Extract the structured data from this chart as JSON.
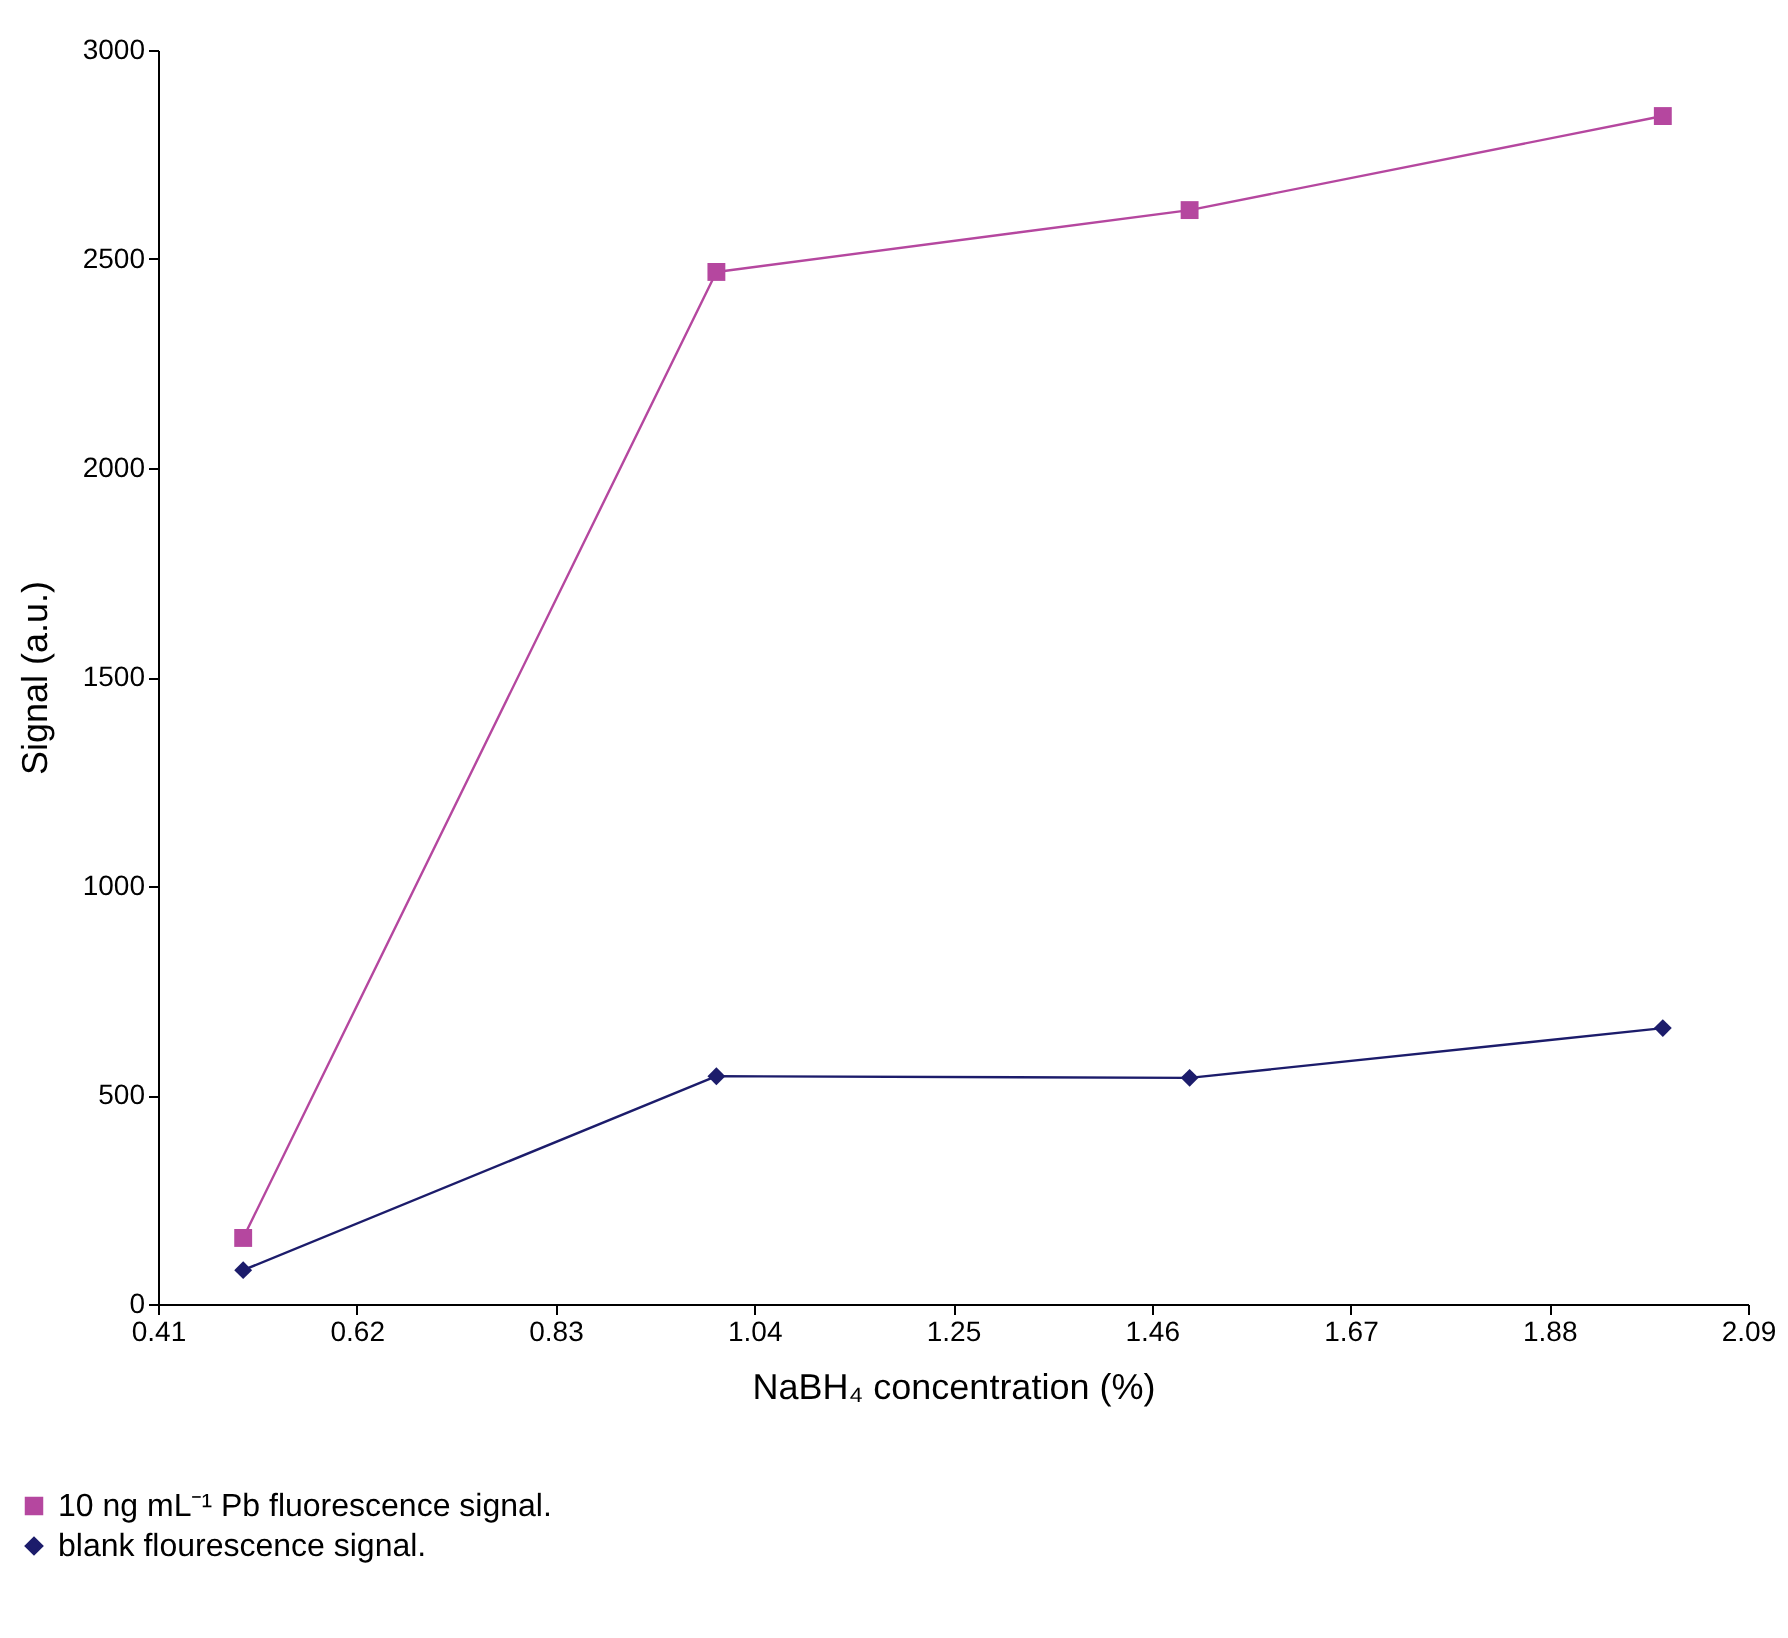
{
  "chart_data": {
    "type": "line",
    "xlabel": "NaBH₄ concentration (%)",
    "ylabel": "Signal (a.u.)",
    "x": [
      0.5,
      1.0,
      1.5,
      2.0
    ],
    "series": [
      {
        "name": "10 ng mL⁻¹ Pb fluorescence signal.",
        "color": "#b5479f",
        "marker": "square",
        "values": [
          158,
          2469,
          2617,
          2842
        ]
      },
      {
        "name": "blank flourescence signal.",
        "color": "#1c1c6b",
        "marker": "diamond",
        "values": [
          81,
          545,
          541,
          660
        ]
      }
    ],
    "xlim": [
      0.41,
      2.09
    ],
    "xticks": [
      0.41,
      0.62,
      0.83,
      1.04,
      1.25,
      1.46,
      1.67,
      1.88,
      2.09
    ],
    "ylim": [
      0,
      3000
    ],
    "yticks": [
      0,
      500,
      1000,
      1500,
      2000,
      2500,
      3000
    ],
    "grid": false,
    "legend": "bottom left"
  }
}
